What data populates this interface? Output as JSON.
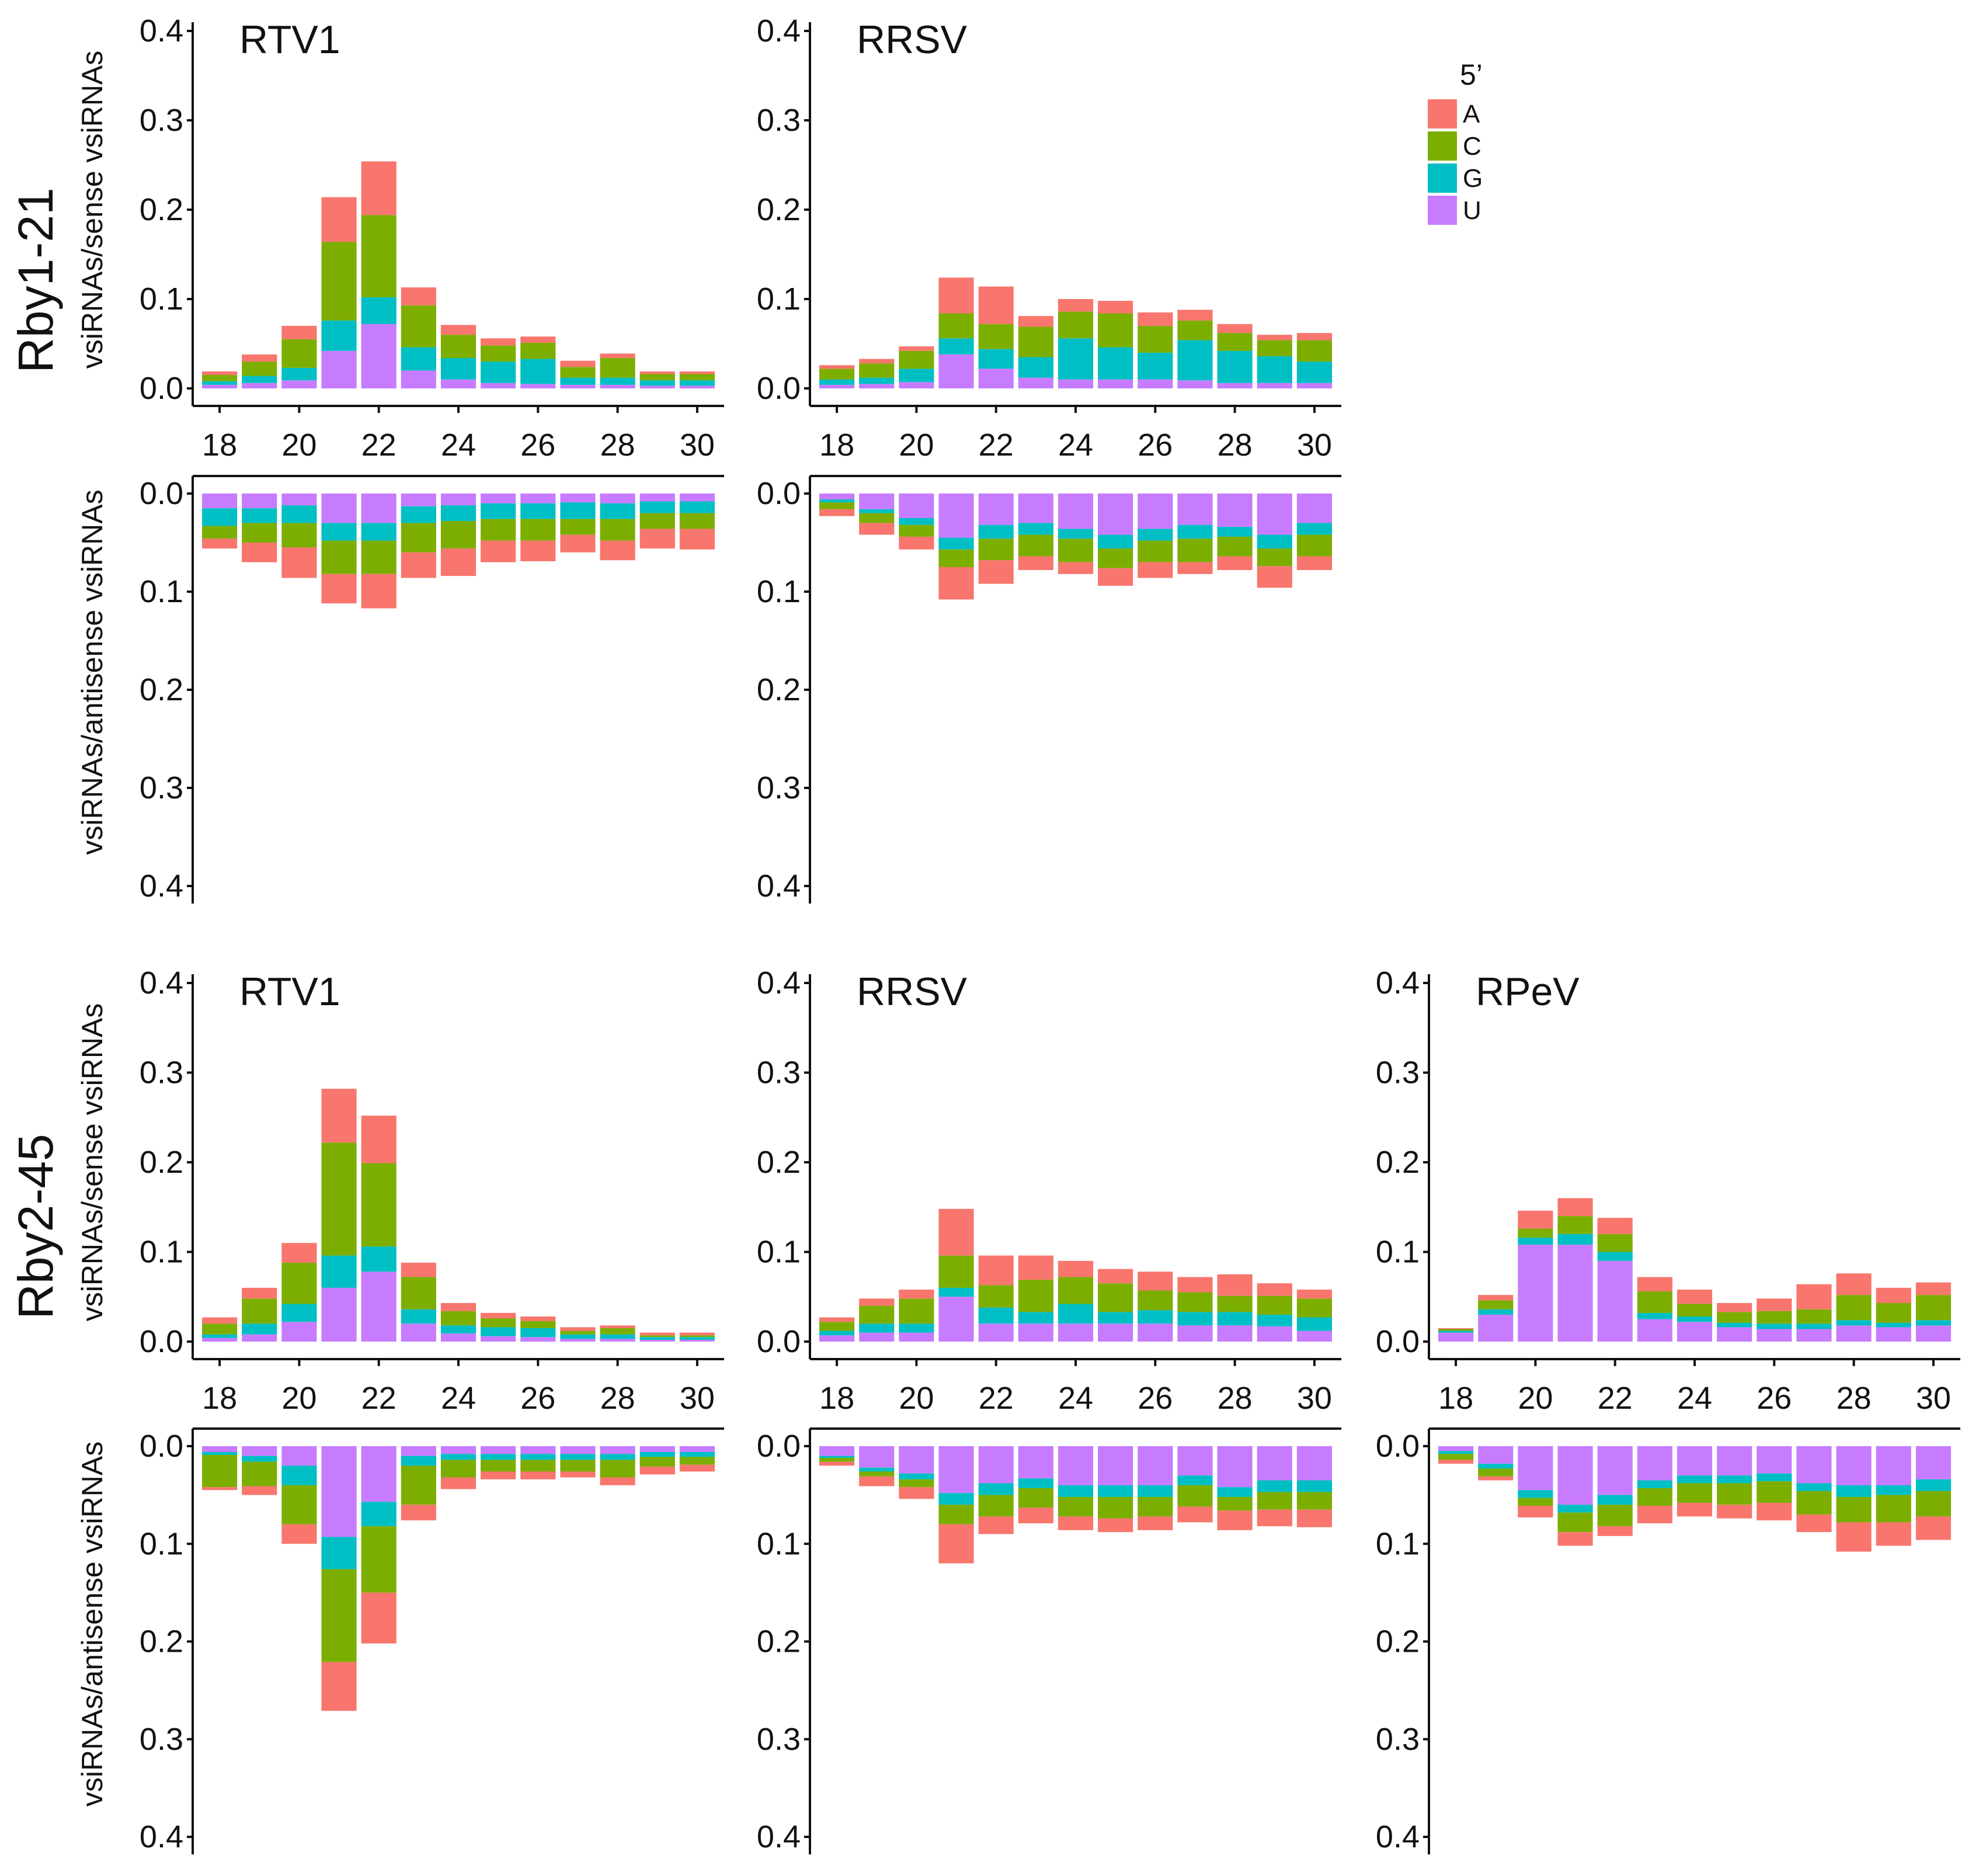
{
  "chart_data": {
    "type": "bar",
    "stacked": true,
    "description": "Mirrored stacked bar charts of vsiRNA length (nt) by 5' nucleotide; sense strand plotted upward, antisense strand plotted downward.",
    "x": [
      18,
      19,
      20,
      21,
      22,
      23,
      24,
      25,
      26,
      27,
      28,
      29,
      30
    ],
    "x_tick_labels": [
      "18",
      "20",
      "22",
      "24",
      "26",
      "28",
      "30"
    ],
    "y_tick_labels": [
      "0.0",
      "0.1",
      "0.2",
      "0.3",
      "0.4"
    ],
    "ylim": [
      0,
      0.4
    ],
    "stack_order": [
      "U",
      "G",
      "C",
      "A"
    ],
    "legend": {
      "title": "5’",
      "entries": [
        {
          "key": "A",
          "label": "A",
          "color": "#F8766D"
        },
        {
          "key": "C",
          "label": "C",
          "color": "#7CAE00"
        },
        {
          "key": "G",
          "label": "G",
          "color": "#00BFC4"
        },
        {
          "key": "U",
          "label": "U",
          "color": "#C77CFF"
        }
      ]
    },
    "y_axis_titles": {
      "sense": "vsiRNAs/sense vsiRNAs",
      "antisense": "vsiRNAs/antisense vsiRNAs"
    },
    "rows": [
      {
        "label": "Rby1-21",
        "panels": [
          {
            "title": "RTV1",
            "sense": {
              "U": [
                0.004,
                0.006,
                0.009,
                0.042,
                0.072,
                0.02,
                0.01,
                0.006,
                0.005,
                0.004,
                0.004,
                0.003,
                0.003
              ],
              "G": [
                0.004,
                0.008,
                0.014,
                0.034,
                0.03,
                0.026,
                0.024,
                0.024,
                0.028,
                0.008,
                0.008,
                0.006,
                0.006
              ],
              "C": [
                0.007,
                0.016,
                0.032,
                0.088,
                0.092,
                0.047,
                0.026,
                0.018,
                0.018,
                0.012,
                0.022,
                0.007,
                0.007
              ],
              "A": [
                0.004,
                0.008,
                0.015,
                0.05,
                0.06,
                0.02,
                0.011,
                0.008,
                0.007,
                0.007,
                0.005,
                0.003,
                0.003
              ]
            },
            "antisense": {
              "U": [
                0.015,
                0.015,
                0.012,
                0.03,
                0.03,
                0.013,
                0.012,
                0.01,
                0.01,
                0.009,
                0.01,
                0.008,
                0.008
              ],
              "G": [
                0.018,
                0.015,
                0.018,
                0.018,
                0.018,
                0.017,
                0.016,
                0.016,
                0.016,
                0.017,
                0.016,
                0.012,
                0.012
              ],
              "C": [
                0.013,
                0.02,
                0.025,
                0.034,
                0.034,
                0.03,
                0.028,
                0.022,
                0.022,
                0.016,
                0.022,
                0.016,
                0.016
              ],
              "A": [
                0.01,
                0.02,
                0.031,
                0.03,
                0.035,
                0.026,
                0.028,
                0.022,
                0.021,
                0.018,
                0.02,
                0.02,
                0.021
              ]
            }
          },
          {
            "title": "RRSV",
            "sense": {
              "U": [
                0.004,
                0.005,
                0.007,
                0.038,
                0.022,
                0.012,
                0.01,
                0.01,
                0.01,
                0.009,
                0.006,
                0.006,
                0.006
              ],
              "G": [
                0.006,
                0.007,
                0.015,
                0.018,
                0.022,
                0.023,
                0.046,
                0.036,
                0.03,
                0.045,
                0.036,
                0.03,
                0.024
              ],
              "C": [
                0.012,
                0.016,
                0.02,
                0.028,
                0.028,
                0.034,
                0.03,
                0.038,
                0.03,
                0.022,
                0.02,
                0.018,
                0.024
              ],
              "A": [
                0.004,
                0.005,
                0.005,
                0.04,
                0.042,
                0.012,
                0.014,
                0.014,
                0.015,
                0.012,
                0.01,
                0.006,
                0.008
              ]
            },
            "antisense": {
              "U": [
                0.006,
                0.016,
                0.025,
                0.045,
                0.032,
                0.03,
                0.036,
                0.042,
                0.036,
                0.032,
                0.034,
                0.042,
                0.03
              ],
              "G": [
                0.003,
                0.004,
                0.007,
                0.012,
                0.014,
                0.012,
                0.01,
                0.014,
                0.012,
                0.014,
                0.01,
                0.014,
                0.012
              ],
              "C": [
                0.007,
                0.01,
                0.012,
                0.018,
                0.022,
                0.022,
                0.024,
                0.02,
                0.022,
                0.024,
                0.02,
                0.018,
                0.022
              ],
              "A": [
                0.007,
                0.012,
                0.013,
                0.033,
                0.024,
                0.014,
                0.012,
                0.018,
                0.016,
                0.012,
                0.014,
                0.022,
                0.014
              ]
            }
          }
        ]
      },
      {
        "label": "Rby2-45",
        "panels": [
          {
            "title": "RTV1",
            "sense": {
              "U": [
                0.004,
                0.008,
                0.022,
                0.06,
                0.078,
                0.02,
                0.009,
                0.006,
                0.005,
                0.003,
                0.003,
                0.002,
                0.002
              ],
              "G": [
                0.004,
                0.012,
                0.02,
                0.036,
                0.028,
                0.016,
                0.009,
                0.01,
                0.01,
                0.005,
                0.005,
                0.003,
                0.003
              ],
              "C": [
                0.012,
                0.028,
                0.046,
                0.126,
                0.093,
                0.036,
                0.016,
                0.01,
                0.008,
                0.004,
                0.007,
                0.002,
                0.002
              ],
              "A": [
                0.007,
                0.012,
                0.022,
                0.06,
                0.053,
                0.016,
                0.009,
                0.006,
                0.005,
                0.004,
                0.003,
                0.003,
                0.003
              ]
            },
            "antisense": {
              "U": [
                0.006,
                0.01,
                0.02,
                0.093,
                0.057,
                0.01,
                0.008,
                0.008,
                0.008,
                0.008,
                0.008,
                0.006,
                0.006
              ],
              "G": [
                0.003,
                0.006,
                0.02,
                0.033,
                0.025,
                0.01,
                0.006,
                0.006,
                0.006,
                0.006,
                0.006,
                0.005,
                0.005
              ],
              "C": [
                0.033,
                0.025,
                0.04,
                0.095,
                0.068,
                0.04,
                0.018,
                0.012,
                0.012,
                0.012,
                0.018,
                0.01,
                0.008
              ],
              "A": [
                0.003,
                0.009,
                0.02,
                0.05,
                0.052,
                0.016,
                0.012,
                0.008,
                0.008,
                0.006,
                0.008,
                0.008,
                0.007
              ]
            }
          },
          {
            "title": "RRSV",
            "sense": {
              "U": [
                0.007,
                0.01,
                0.01,
                0.05,
                0.02,
                0.02,
                0.02,
                0.02,
                0.02,
                0.018,
                0.018,
                0.017,
                0.012
              ],
              "G": [
                0.005,
                0.01,
                0.01,
                0.01,
                0.018,
                0.013,
                0.022,
                0.013,
                0.015,
                0.015,
                0.015,
                0.013,
                0.015
              ],
              "C": [
                0.01,
                0.02,
                0.028,
                0.036,
                0.025,
                0.036,
                0.03,
                0.032,
                0.022,
                0.022,
                0.018,
                0.021,
                0.021
              ],
              "A": [
                0.005,
                0.008,
                0.01,
                0.052,
                0.033,
                0.027,
                0.018,
                0.016,
                0.021,
                0.017,
                0.024,
                0.014,
                0.01
              ]
            },
            "antisense": {
              "U": [
                0.01,
                0.022,
                0.028,
                0.048,
                0.038,
                0.033,
                0.04,
                0.04,
                0.04,
                0.03,
                0.042,
                0.035,
                0.035
              ],
              "G": [
                0.002,
                0.004,
                0.006,
                0.012,
                0.012,
                0.01,
                0.012,
                0.012,
                0.012,
                0.01,
                0.01,
                0.012,
                0.012
              ],
              "C": [
                0.004,
                0.005,
                0.008,
                0.02,
                0.022,
                0.02,
                0.02,
                0.022,
                0.02,
                0.022,
                0.014,
                0.018,
                0.018
              ],
              "A": [
                0.004,
                0.01,
                0.012,
                0.04,
                0.018,
                0.016,
                0.014,
                0.014,
                0.014,
                0.016,
                0.02,
                0.017,
                0.018
              ]
            }
          },
          {
            "title": "RPeV",
            "sense": {
              "U": [
                0.01,
                0.03,
                0.108,
                0.108,
                0.09,
                0.025,
                0.022,
                0.016,
                0.014,
                0.014,
                0.018,
                0.016,
                0.018
              ],
              "G": [
                0.002,
                0.006,
                0.008,
                0.012,
                0.01,
                0.007,
                0.006,
                0.005,
                0.006,
                0.006,
                0.006,
                0.005,
                0.006
              ],
              "C": [
                0.002,
                0.01,
                0.01,
                0.02,
                0.02,
                0.024,
                0.014,
                0.012,
                0.014,
                0.016,
                0.028,
                0.022,
                0.028
              ],
              "A": [
                0.001,
                0.006,
                0.02,
                0.02,
                0.018,
                0.016,
                0.016,
                0.01,
                0.014,
                0.028,
                0.024,
                0.017,
                0.014
              ]
            },
            "antisense": {
              "U": [
                0.005,
                0.018,
                0.045,
                0.06,
                0.05,
                0.035,
                0.03,
                0.03,
                0.028,
                0.038,
                0.04,
                0.04,
                0.034
              ],
              "G": [
                0.003,
                0.005,
                0.008,
                0.008,
                0.01,
                0.008,
                0.008,
                0.008,
                0.008,
                0.008,
                0.012,
                0.01,
                0.012
              ],
              "C": [
                0.006,
                0.008,
                0.008,
                0.02,
                0.022,
                0.018,
                0.02,
                0.022,
                0.022,
                0.024,
                0.026,
                0.028,
                0.026
              ],
              "A": [
                0.004,
                0.004,
                0.012,
                0.014,
                0.01,
                0.018,
                0.014,
                0.014,
                0.018,
                0.018,
                0.03,
                0.024,
                0.024
              ]
            }
          }
        ]
      }
    ]
  }
}
